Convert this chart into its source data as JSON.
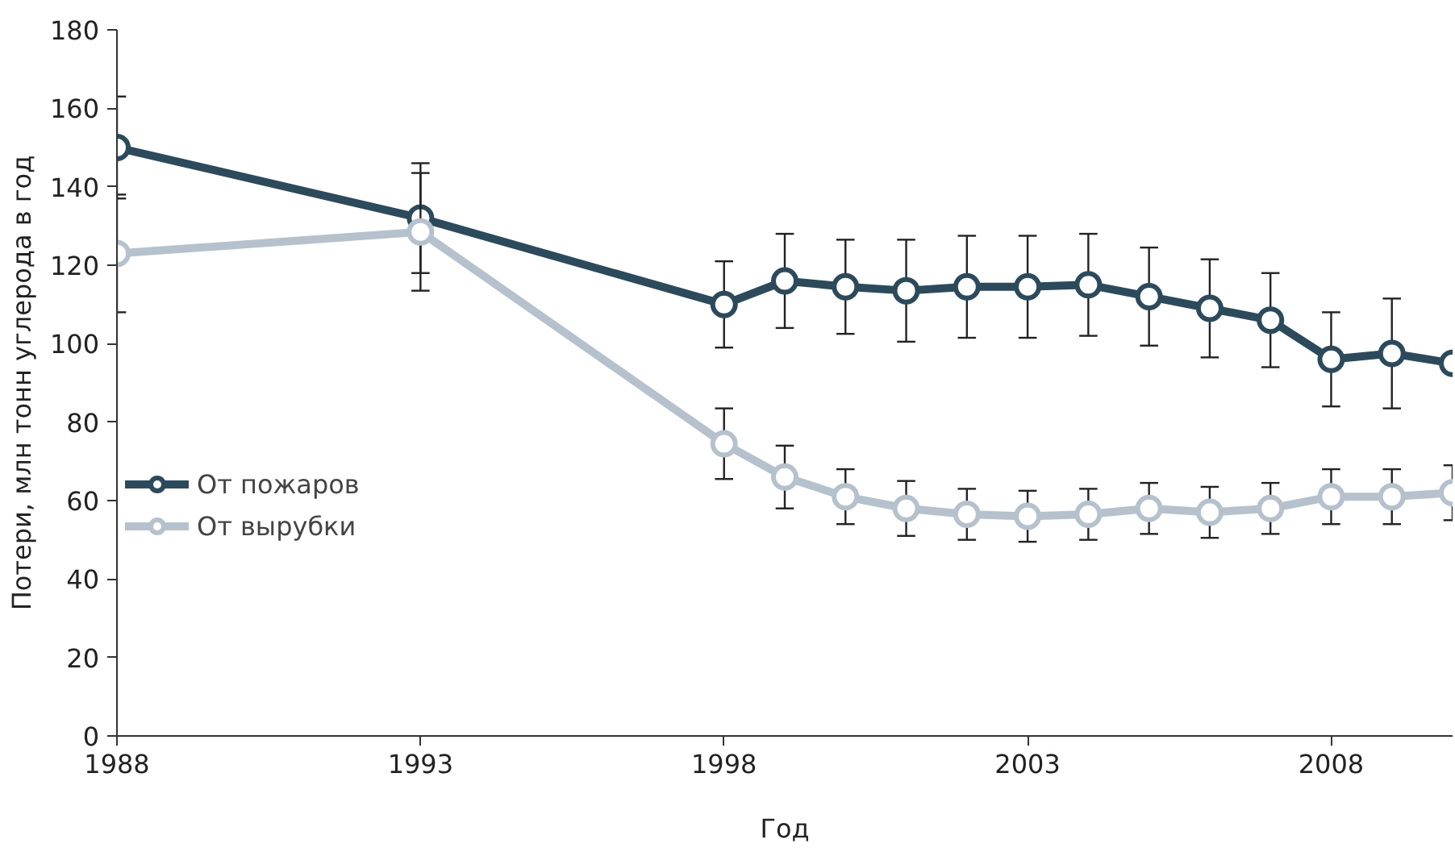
{
  "chart_data": {
    "type": "line",
    "xlabel": "Год",
    "ylabel": "Потери, млн тонн углерода в год",
    "x": [
      1988,
      1993,
      1998,
      1999,
      2000,
      2001,
      2002,
      2003,
      2004,
      2005,
      2006,
      2007,
      2008,
      2009,
      2010
    ],
    "series": [
      {
        "name": "От пожаров",
        "color": "#2b4a5c",
        "values": [
          150,
          132,
          110,
          116,
          114.5,
          113.5,
          114.5,
          114.5,
          115,
          112,
          109,
          106,
          96,
          97.5,
          95
        ],
        "errors": [
          13,
          14,
          11,
          12,
          12,
          13,
          13,
          13,
          13,
          12.5,
          12.5,
          12,
          12,
          14,
          null
        ]
      },
      {
        "name": "От вырубки",
        "color": "#b5c2cd",
        "values": [
          123,
          128.5,
          74.5,
          66,
          61,
          58,
          56.5,
          56,
          56.5,
          58,
          57,
          58,
          61,
          61,
          62
        ],
        "errors": [
          15,
          15,
          9,
          8,
          7,
          7,
          6.5,
          6.5,
          6.5,
          6.5,
          6.5,
          6.5,
          7,
          7,
          7
        ]
      }
    ],
    "xlim": [
      1988,
      2010
    ],
    "ylim": [
      0,
      180
    ],
    "xticks": [
      1988,
      1993,
      1998,
      2003,
      2008
    ],
    "yticks": [
      0,
      20,
      40,
      60,
      80,
      100,
      120,
      140,
      160,
      180
    ],
    "grid": false,
    "legend": "left",
    "marker": "circle",
    "line_style": "solid"
  }
}
